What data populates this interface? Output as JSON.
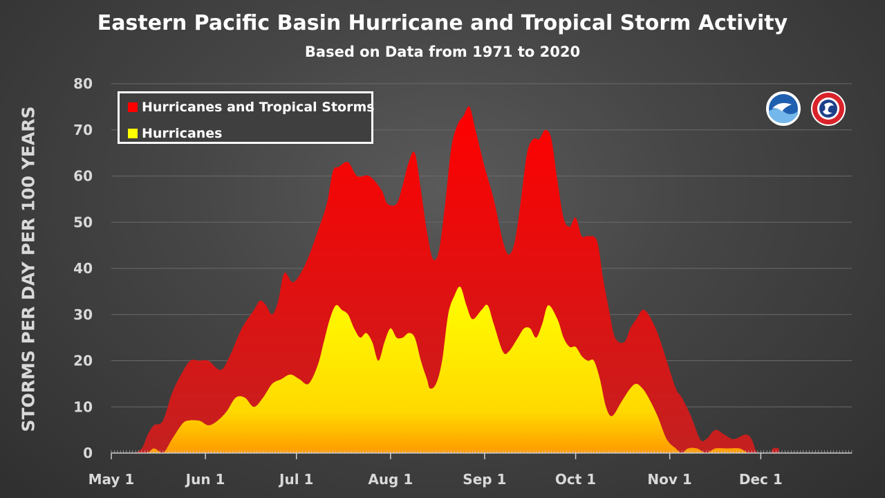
{
  "colors": {
    "all_storms": "#ff0000",
    "hurricanes": "#ffff00",
    "grid": "#6a6a6a",
    "axis": "#cfcfcf"
  },
  "logos": {
    "left": "noaa-logo",
    "right": "national-weather-service-logo"
  },
  "chart_data": {
    "type": "area",
    "title": "Eastern Pacific Basin Hurricane and Tropical Storm Activity",
    "subtitle": "Based on Data from 1971 to 2020",
    "xlabel": "",
    "ylabel": "STORMS PER DAY PER 100 YEARS",
    "ylim": [
      0,
      80
    ],
    "y_ticks": [
      0,
      10,
      20,
      30,
      40,
      50,
      60,
      70,
      80
    ],
    "xlim": [
      "May 1",
      "Dec 31"
    ],
    "x_ticks": [
      {
        "label": "May 1",
        "day": 0
      },
      {
        "label": "Jun 1",
        "day": 31
      },
      {
        "label": "Jul 1",
        "day": 61
      },
      {
        "label": "Aug 1",
        "day": 92
      },
      {
        "label": "Sep 1",
        "day": 123
      },
      {
        "label": "Oct 1",
        "day": 153
      },
      {
        "label": "Nov 1",
        "day": 184
      },
      {
        "label": "Dec 1",
        "day": 214
      }
    ],
    "grid": true,
    "legend": "top-left",
    "series": [
      {
        "name": "Hurricanes and Tropical Storms",
        "color": "#ff0000",
        "points": [
          {
            "date": "May 1",
            "value": 0
          },
          {
            "date": "May 8",
            "value": 0
          },
          {
            "date": "May 11",
            "value": 1
          },
          {
            "date": "May 13",
            "value": 4
          },
          {
            "date": "May 15",
            "value": 6
          },
          {
            "date": "May 18",
            "value": 7
          },
          {
            "date": "May 21",
            "value": 13
          },
          {
            "date": "May 24",
            "value": 17
          },
          {
            "date": "May 27",
            "value": 20
          },
          {
            "date": "May 30",
            "value": 20
          },
          {
            "date": "Jun 2",
            "value": 20
          },
          {
            "date": "Jun 6",
            "value": 18
          },
          {
            "date": "Jun 9",
            "value": 21
          },
          {
            "date": "Jun 13",
            "value": 27
          },
          {
            "date": "Jun 17",
            "value": 31
          },
          {
            "date": "Jun 19",
            "value": 33
          },
          {
            "date": "Jun 21",
            "value": 32
          },
          {
            "date": "Jun 23",
            "value": 30
          },
          {
            "date": "Jun 25",
            "value": 33
          },
          {
            "date": "Jun 27",
            "value": 39
          },
          {
            "date": "Jun 30",
            "value": 37
          },
          {
            "date": "Jul 4",
            "value": 41
          },
          {
            "date": "Jul 8",
            "value": 48
          },
          {
            "date": "Jul 11",
            "value": 54
          },
          {
            "date": "Jul 13",
            "value": 61
          },
          {
            "date": "Jul 15",
            "value": 62
          },
          {
            "date": "Jul 18",
            "value": 63
          },
          {
            "date": "Jul 21",
            "value": 60
          },
          {
            "date": "Jul 25",
            "value": 60
          },
          {
            "date": "Jul 29",
            "value": 57
          },
          {
            "date": "Jul 31",
            "value": 54
          },
          {
            "date": "Aug 3",
            "value": 54
          },
          {
            "date": "Aug 5",
            "value": 58
          },
          {
            "date": "Aug 7",
            "value": 63
          },
          {
            "date": "Aug 9",
            "value": 65
          },
          {
            "date": "Aug 11",
            "value": 57
          },
          {
            "date": "Aug 13",
            "value": 48
          },
          {
            "date": "Aug 15",
            "value": 42
          },
          {
            "date": "Aug 17",
            "value": 44
          },
          {
            "date": "Aug 19",
            "value": 54
          },
          {
            "date": "Aug 21",
            "value": 66
          },
          {
            "date": "Aug 23",
            "value": 71
          },
          {
            "date": "Aug 25",
            "value": 73
          },
          {
            "date": "Aug 27",
            "value": 75
          },
          {
            "date": "Aug 29",
            "value": 70
          },
          {
            "date": "Sep 1",
            "value": 62
          },
          {
            "date": "Sep 4",
            "value": 55
          },
          {
            "date": "Sep 7",
            "value": 46
          },
          {
            "date": "Sep 9",
            "value": 43
          },
          {
            "date": "Sep 11",
            "value": 46
          },
          {
            "date": "Sep 13",
            "value": 55
          },
          {
            "date": "Sep 15",
            "value": 65
          },
          {
            "date": "Sep 17",
            "value": 68
          },
          {
            "date": "Sep 19",
            "value": 68
          },
          {
            "date": "Sep 21",
            "value": 70
          },
          {
            "date": "Sep 23",
            "value": 68
          },
          {
            "date": "Sep 25",
            "value": 59
          },
          {
            "date": "Sep 27",
            "value": 51
          },
          {
            "date": "Sep 29",
            "value": 49
          },
          {
            "date": "Oct 1",
            "value": 51
          },
          {
            "date": "Oct 3",
            "value": 47
          },
          {
            "date": "Oct 5",
            "value": 47
          },
          {
            "date": "Oct 8",
            "value": 46
          },
          {
            "date": "Oct 10",
            "value": 38
          },
          {
            "date": "Oct 12",
            "value": 31
          },
          {
            "date": "Oct 14",
            "value": 25
          },
          {
            "date": "Oct 17",
            "value": 24
          },
          {
            "date": "Oct 19",
            "value": 27
          },
          {
            "date": "Oct 21",
            "value": 29
          },
          {
            "date": "Oct 23",
            "value": 31
          },
          {
            "date": "Oct 25",
            "value": 30
          },
          {
            "date": "Oct 28",
            "value": 26
          },
          {
            "date": "Oct 31",
            "value": 20
          },
          {
            "date": "Nov 3",
            "value": 14
          },
          {
            "date": "Nov 5",
            "value": 12
          },
          {
            "date": "Nov 8",
            "value": 8
          },
          {
            "date": "Nov 11",
            "value": 3
          },
          {
            "date": "Nov 13",
            "value": 3
          },
          {
            "date": "Nov 16",
            "value": 5
          },
          {
            "date": "Nov 19",
            "value": 4
          },
          {
            "date": "Nov 22",
            "value": 3
          },
          {
            "date": "Nov 26",
            "value": 4
          },
          {
            "date": "Nov 28",
            "value": 3
          },
          {
            "date": "Nov 30",
            "value": 0
          },
          {
            "date": "Dec 4",
            "value": 0
          },
          {
            "date": "Dec 5",
            "value": 1
          },
          {
            "date": "Dec 7",
            "value": 1
          },
          {
            "date": "Dec 9",
            "value": 0
          },
          {
            "date": "Dec 31",
            "value": 0
          }
        ]
      },
      {
        "name": "Hurricanes",
        "color": "#ffff00",
        "points": [
          {
            "date": "May 1",
            "value": 0
          },
          {
            "date": "May 12",
            "value": 0
          },
          {
            "date": "May 15",
            "value": 1
          },
          {
            "date": "May 18",
            "value": 0
          },
          {
            "date": "May 21",
            "value": 3
          },
          {
            "date": "May 24",
            "value": 6
          },
          {
            "date": "May 26",
            "value": 7
          },
          {
            "date": "May 30",
            "value": 7
          },
          {
            "date": "Jun 2",
            "value": 6
          },
          {
            "date": "Jun 5",
            "value": 7
          },
          {
            "date": "Jun 8",
            "value": 9
          },
          {
            "date": "Jun 11",
            "value": 12
          },
          {
            "date": "Jun 14",
            "value": 12
          },
          {
            "date": "Jun 17",
            "value": 10
          },
          {
            "date": "Jun 20",
            "value": 12
          },
          {
            "date": "Jun 23",
            "value": 15
          },
          {
            "date": "Jun 26",
            "value": 16
          },
          {
            "date": "Jun 29",
            "value": 17
          },
          {
            "date": "Jul 2",
            "value": 16
          },
          {
            "date": "Jul 5",
            "value": 15
          },
          {
            "date": "Jul 8",
            "value": 19
          },
          {
            "date": "Jul 10",
            "value": 24
          },
          {
            "date": "Jul 12",
            "value": 29
          },
          {
            "date": "Jul 14",
            "value": 32
          },
          {
            "date": "Jul 16",
            "value": 31
          },
          {
            "date": "Jul 18",
            "value": 30
          },
          {
            "date": "Jul 20",
            "value": 27
          },
          {
            "date": "Jul 22",
            "value": 25
          },
          {
            "date": "Jul 24",
            "value": 26
          },
          {
            "date": "Jul 26",
            "value": 24
          },
          {
            "date": "Jul 28",
            "value": 20
          },
          {
            "date": "Jul 30",
            "value": 24
          },
          {
            "date": "Aug 1",
            "value": 27
          },
          {
            "date": "Aug 3",
            "value": 25
          },
          {
            "date": "Aug 5",
            "value": 25
          },
          {
            "date": "Aug 7",
            "value": 26
          },
          {
            "date": "Aug 9",
            "value": 25
          },
          {
            "date": "Aug 11",
            "value": 20
          },
          {
            "date": "Aug 13",
            "value": 16
          },
          {
            "date": "Aug 14",
            "value": 14
          },
          {
            "date": "Aug 16",
            "value": 15
          },
          {
            "date": "Aug 18",
            "value": 20
          },
          {
            "date": "Aug 20",
            "value": 30
          },
          {
            "date": "Aug 22",
            "value": 34
          },
          {
            "date": "Aug 24",
            "value": 36
          },
          {
            "date": "Aug 26",
            "value": 32
          },
          {
            "date": "Aug 28",
            "value": 29
          },
          {
            "date": "Aug 31",
            "value": 31
          },
          {
            "date": "Sep 2",
            "value": 32
          },
          {
            "date": "Sep 4",
            "value": 28
          },
          {
            "date": "Sep 7",
            "value": 22
          },
          {
            "date": "Sep 9",
            "value": 22
          },
          {
            "date": "Sep 12",
            "value": 25
          },
          {
            "date": "Sep 14",
            "value": 27
          },
          {
            "date": "Sep 16",
            "value": 27
          },
          {
            "date": "Sep 18",
            "value": 25
          },
          {
            "date": "Sep 20",
            "value": 28
          },
          {
            "date": "Sep 22",
            "value": 32
          },
          {
            "date": "Sep 25",
            "value": 29
          },
          {
            "date": "Sep 27",
            "value": 25
          },
          {
            "date": "Sep 29",
            "value": 23
          },
          {
            "date": "Oct 1",
            "value": 23
          },
          {
            "date": "Oct 3",
            "value": 21
          },
          {
            "date": "Oct 5",
            "value": 20
          },
          {
            "date": "Oct 7",
            "value": 20
          },
          {
            "date": "Oct 9",
            "value": 16
          },
          {
            "date": "Oct 11",
            "value": 10
          },
          {
            "date": "Oct 13",
            "value": 8
          },
          {
            "date": "Oct 16",
            "value": 11
          },
          {
            "date": "Oct 19",
            "value": 14
          },
          {
            "date": "Oct 21",
            "value": 15
          },
          {
            "date": "Oct 23",
            "value": 14
          },
          {
            "date": "Oct 25",
            "value": 12
          },
          {
            "date": "Oct 28",
            "value": 8
          },
          {
            "date": "Oct 31",
            "value": 3
          },
          {
            "date": "Nov 3",
            "value": 1
          },
          {
            "date": "Nov 5",
            "value": 0
          },
          {
            "date": "Nov 7",
            "value": 1
          },
          {
            "date": "Nov 10",
            "value": 1
          },
          {
            "date": "Nov 13",
            "value": 0
          },
          {
            "date": "Nov 16",
            "value": 1
          },
          {
            "date": "Nov 20",
            "value": 1
          },
          {
            "date": "Nov 24",
            "value": 1
          },
          {
            "date": "Nov 27",
            "value": 0
          },
          {
            "date": "Nov 30",
            "value": 0
          },
          {
            "date": "Dec 31",
            "value": 0
          }
        ]
      }
    ]
  }
}
